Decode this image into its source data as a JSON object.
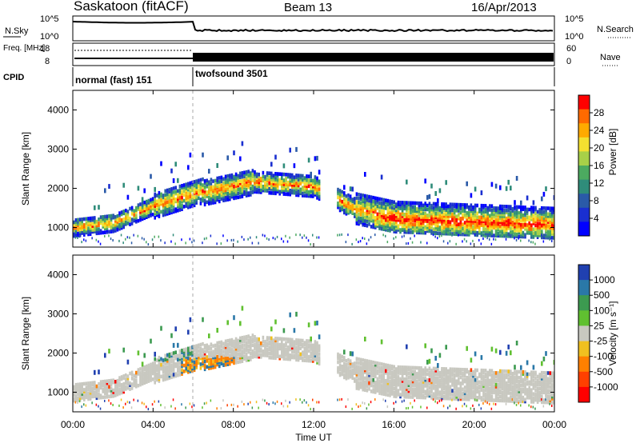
{
  "header": {
    "title": "Saskatoon (fitACF)",
    "beam": "Beam 13",
    "date": "16/Apr/2013"
  },
  "chart_data": [
    {
      "type": "line",
      "name": "summary-nsky",
      "left_label": "N.Sky",
      "right_label": "N.Search",
      "left_ticks": [
        "10^5",
        "10^0"
      ],
      "right_ticks": [
        "10^5",
        "10^0"
      ]
    },
    {
      "type": "line",
      "name": "summary-freq-nave",
      "left_label": "Freq. [MHz]",
      "right_label": "Nave",
      "left_ticks": [
        "18",
        "8"
      ],
      "right_ticks": [
        "60",
        "0"
      ],
      "freq_mhz_before_0600": 11,
      "freq_mhz_after_0600": 11
    },
    {
      "type": "table",
      "name": "cpid",
      "label": "CPID",
      "modes": [
        {
          "name": "normal (fast) 151",
          "start_hour": 0,
          "end_hour": 6
        },
        {
          "name": "twofsound 3501",
          "start_hour": 6,
          "end_hour": 24
        }
      ]
    },
    {
      "type": "heatmap",
      "name": "power",
      "ylabel": "Slant Range [km]",
      "yticks": [
        1000,
        2000,
        3000,
        4000
      ],
      "ylim": [
        500,
        4500
      ],
      "xlim": [
        0,
        24
      ],
      "colorbar": {
        "label": "Power [dB]",
        "ticks": [
          "28",
          "24",
          "20",
          "16",
          "12",
          "8",
          "4"
        ],
        "colors": [
          "#ff0000",
          "#ff6a00",
          "#ffaa00",
          "#f4e030",
          "#a8d048",
          "#4caa60",
          "#2f8c7a",
          "#2a5aa8",
          "#1a2fd0",
          "#0000ff"
        ]
      }
    },
    {
      "type": "heatmap",
      "name": "velocity",
      "ylabel": "Slant Range [km]",
      "yticks": [
        1000,
        2000,
        3000,
        4000
      ],
      "ylim": [
        500,
        4500
      ],
      "xlim": [
        0,
        24
      ],
      "xlabel": "Time UT",
      "xticks": [
        "00:00",
        "04:00",
        "08:00",
        "12:00",
        "16:00",
        "20:00",
        "00:00"
      ],
      "colorbar": {
        "label": "Velocity [m s⁻¹]",
        "ticks": [
          "1000",
          "500",
          "100",
          "25",
          "-25",
          "-100",
          "-500",
          "-1000"
        ],
        "colors": [
          "#2040b0",
          "#2a78a8",
          "#3c9a50",
          "#60c030",
          "#c8c8c0",
          "#f0c020",
          "#ff8000",
          "#ff4000",
          "#ff0000"
        ]
      }
    }
  ]
}
